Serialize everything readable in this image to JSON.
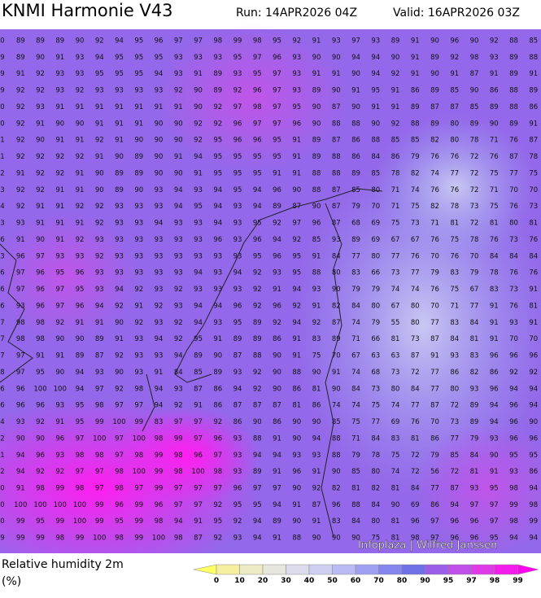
{
  "header": {
    "title": "KNMI Harmonie V43",
    "run": "Run: 14APR2026 04Z",
    "valid": "Valid: 16APR2026 03Z"
  },
  "map": {
    "credit": "Infoplaza | Wilfred Janssen",
    "grid": [
      [
        0,
        89,
        89,
        89,
        90,
        92,
        94,
        95,
        96,
        97,
        97,
        98,
        99,
        98,
        95,
        92,
        91,
        93,
        97,
        93,
        89,
        91,
        90,
        96,
        90,
        92,
        88,
        85
      ],
      [
        9,
        89,
        90,
        91,
        93,
        94,
        95,
        95,
        95,
        93,
        93,
        93,
        95,
        97,
        96,
        93,
        90,
        90,
        94,
        94,
        90,
        91,
        89,
        92,
        98,
        93,
        89,
        88
      ],
      [
        9,
        91,
        92,
        93,
        93,
        95,
        95,
        95,
        94,
        93,
        91,
        89,
        93,
        95,
        97,
        93,
        91,
        91,
        90,
        94,
        92,
        91,
        90,
        91,
        87,
        91,
        89,
        91
      ],
      [
        9,
        92,
        92,
        93,
        92,
        93,
        93,
        93,
        93,
        92,
        90,
        89,
        92,
        96,
        97,
        93,
        89,
        90,
        91,
        95,
        91,
        86,
        89,
        85,
        90,
        86,
        88,
        89
      ],
      [
        0,
        92,
        93,
        91,
        91,
        91,
        91,
        91,
        91,
        91,
        90,
        92,
        97,
        98,
        97,
        95,
        90,
        87,
        90,
        91,
        91,
        89,
        87,
        87,
        85,
        89,
        88,
        86
      ],
      [
        0,
        92,
        91,
        90,
        90,
        91,
        91,
        91,
        90,
        90,
        92,
        92,
        96,
        97,
        97,
        96,
        90,
        88,
        88,
        90,
        92,
        88,
        89,
        80,
        89,
        90,
        89,
        91
      ],
      [
        1,
        92,
        90,
        91,
        91,
        92,
        91,
        90,
        90,
        90,
        92,
        95,
        96,
        96,
        95,
        91,
        89,
        87,
        86,
        88,
        85,
        85,
        82,
        80,
        78,
        71,
        76,
        87
      ],
      [
        1,
        92,
        92,
        92,
        92,
        91,
        90,
        89,
        90,
        91,
        94,
        95,
        95,
        95,
        95,
        91,
        89,
        88,
        86,
        84,
        86,
        79,
        76,
        76,
        72,
        76,
        87,
        78
      ],
      [
        2,
        91,
        92,
        92,
        91,
        90,
        89,
        89,
        90,
        90,
        91,
        95,
        95,
        95,
        91,
        91,
        88,
        88,
        89,
        85,
        78,
        82,
        74,
        77,
        72,
        75,
        77,
        75
      ],
      [
        3,
        92,
        92,
        91,
        91,
        90,
        89,
        90,
        93,
        94,
        93,
        94,
        95,
        94,
        96,
        90,
        88,
        87,
        85,
        80,
        71,
        74,
        76,
        76,
        72,
        71,
        70,
        70
      ],
      [
        4,
        92,
        91,
        91,
        92,
        92,
        93,
        93,
        93,
        94,
        95,
        94,
        93,
        94,
        89,
        87,
        90,
        87,
        79,
        70,
        71,
        75,
        82,
        78,
        73,
        75,
        76,
        73
      ],
      [
        3,
        93,
        91,
        91,
        91,
        92,
        93,
        93,
        94,
        93,
        93,
        94,
        93,
        95,
        92,
        97,
        96,
        87,
        68,
        69,
        75,
        73,
        71,
        81,
        72,
        81,
        80,
        81
      ],
      [
        6,
        91,
        90,
        91,
        92,
        93,
        93,
        93,
        93,
        93,
        93,
        96,
        93,
        96,
        94,
        92,
        85,
        93,
        89,
        69,
        67,
        67,
        76,
        75,
        78,
        76,
        73,
        76
      ],
      [
        3,
        96,
        97,
        93,
        93,
        92,
        93,
        93,
        93,
        93,
        93,
        93,
        93,
        95,
        96,
        95,
        91,
        84,
        77,
        80,
        77,
        76,
        70,
        76,
        70,
        84,
        84,
        84
      ],
      [
        6,
        97,
        96,
        95,
        96,
        93,
        93,
        93,
        93,
        93,
        94,
        93,
        94,
        92,
        93,
        95,
        88,
        80,
        83,
        66,
        73,
        77,
        79,
        83,
        79,
        78,
        76,
        76
      ],
      [
        6,
        97,
        96,
        97,
        95,
        93,
        94,
        92,
        93,
        92,
        93,
        93,
        93,
        92,
        91,
        94,
        93,
        90,
        79,
        79,
        74,
        74,
        76,
        75,
        67,
        83,
        73,
        91
      ],
      [
        6,
        93,
        96,
        97,
        96,
        94,
        92,
        91,
        92,
        93,
        94,
        94,
        96,
        92,
        96,
        92,
        91,
        82,
        84,
        80,
        67,
        80,
        70,
        71,
        77,
        91,
        76,
        81
      ],
      [
        7,
        98,
        98,
        92,
        91,
        91,
        90,
        92,
        93,
        92,
        94,
        93,
        95,
        89,
        92,
        94,
        92,
        87,
        74,
        79,
        55,
        80,
        77,
        83,
        84,
        91,
        93,
        91
      ],
      [
        7,
        98,
        98,
        90,
        90,
        89,
        91,
        93,
        94,
        92,
        95,
        91,
        89,
        89,
        86,
        91,
        83,
        89,
        71,
        66,
        81,
        73,
        87,
        84,
        81,
        91,
        70,
        70
      ],
      [
        7,
        97,
        91,
        91,
        89,
        87,
        92,
        93,
        93,
        94,
        89,
        90,
        87,
        88,
        90,
        91,
        75,
        70,
        67,
        63,
        63,
        87,
        91,
        93,
        83,
        96,
        96,
        96
      ],
      [
        8,
        97,
        95,
        90,
        94,
        93,
        90,
        93,
        91,
        84,
        85,
        89,
        93,
        92,
        90,
        88,
        90,
        91,
        74,
        68,
        73,
        72,
        77,
        86,
        82,
        86,
        92,
        92
      ],
      [
        6,
        96,
        100,
        100,
        94,
        97,
        92,
        98,
        94,
        93,
        87,
        86,
        94,
        92,
        90,
        86,
        81,
        90,
        84,
        73,
        80,
        84,
        77,
        80,
        93,
        96,
        94,
        94
      ],
      [
        6,
        96,
        96,
        93,
        95,
        98,
        97,
        97,
        94,
        92,
        91,
        86,
        87,
        87,
        87,
        81,
        86,
        74,
        74,
        75,
        74,
        77,
        87,
        72,
        89,
        94,
        96,
        94
      ],
      [
        4,
        93,
        92,
        91,
        95,
        99,
        100,
        99,
        83,
        97,
        97,
        92,
        86,
        90,
        86,
        90,
        90,
        85,
        75,
        77,
        69,
        76,
        70,
        73,
        89,
        94,
        96,
        90
      ],
      [
        2,
        90,
        90,
        96,
        97,
        100,
        97,
        100,
        98,
        99,
        97,
        96,
        93,
        88,
        91,
        90,
        94,
        88,
        71,
        84,
        83,
        81,
        86,
        77,
        79,
        93,
        96,
        96
      ],
      [
        1,
        94,
        96,
        93,
        98,
        98,
        97,
        98,
        99,
        98,
        96,
        97,
        93,
        94,
        94,
        93,
        93,
        88,
        79,
        78,
        75,
        72,
        79,
        85,
        84,
        90,
        95,
        95
      ],
      [
        2,
        94,
        92,
        92,
        97,
        97,
        98,
        100,
        99,
        98,
        100,
        98,
        93,
        89,
        91,
        96,
        91,
        90,
        85,
        80,
        74,
        72,
        56,
        72,
        81,
        91,
        93,
        86
      ],
      [
        0,
        91,
        98,
        99,
        98,
        97,
        98,
        97,
        99,
        97,
        97,
        97,
        96,
        97,
        97,
        90,
        92,
        82,
        81,
        82,
        81,
        84,
        77,
        87,
        93,
        95,
        98,
        94
      ],
      [
        0,
        100,
        100,
        100,
        100,
        99,
        96,
        99,
        96,
        97,
        97,
        92,
        95,
        95,
        94,
        91,
        87,
        96,
        88,
        84,
        90,
        69,
        86,
        94,
        97,
        97,
        99,
        98
      ],
      [
        0,
        99,
        95,
        99,
        100,
        99,
        95,
        99,
        98,
        94,
        91,
        95,
        92,
        94,
        89,
        90,
        91,
        83,
        84,
        80,
        81,
        96,
        97,
        96,
        96,
        97,
        98,
        99
      ],
      [
        9,
        99,
        99,
        98,
        99,
        100,
        98,
        99,
        100,
        98,
        87,
        92,
        93,
        94,
        91,
        88,
        90,
        90,
        90,
        75,
        81,
        98,
        97,
        96,
        96,
        95,
        94,
        94
      ]
    ]
  },
  "legend": {
    "label": "Relative humidity 2m",
    "unit": "(%)",
    "ticks": [
      0,
      10,
      20,
      30,
      40,
      50,
      60,
      70,
      80,
      90,
      95,
      97,
      98,
      99
    ],
    "colors": [
      "#ffff66",
      "#f4f0a0",
      "#ecebc4",
      "#e6e6dc",
      "#dcdcec",
      "#cfcff2",
      "#babaf4",
      "#a0a0f2",
      "#8585ee",
      "#7070e6",
      "#9a5ee8",
      "#c04ee8",
      "#e03ae8",
      "#f41cec",
      "#ff00f0"
    ]
  }
}
